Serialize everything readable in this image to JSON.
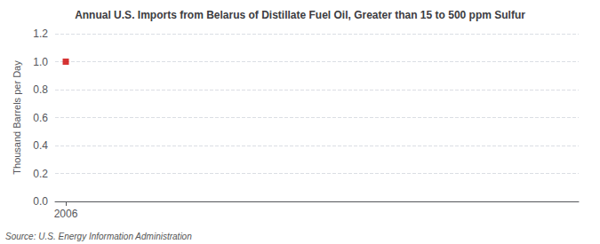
{
  "chart_data": {
    "type": "scatter",
    "title": "Annual U.S. Imports from Belarus of Distillate Fuel Oil, Greater than 15 to 500 ppm Sulfur",
    "ylabel": "Thousand Barrels per Day",
    "annotation": "Source: U.S. Energy Information Administration",
    "x": [
      2006
    ],
    "values": [
      1.0
    ],
    "color": "#cc0000",
    "marker": "square",
    "xlim": [
      2005.5,
      2030
    ],
    "xticks": [
      2006
    ],
    "ylim": [
      0.0,
      1.2
    ],
    "yticks": [
      {
        "value": 0.0,
        "label": "0.0"
      },
      0.2,
      0.4,
      0.6,
      0.8,
      {
        "value": 1.0,
        "label": "1.0"
      },
      1.2
    ],
    "grid": true
  }
}
